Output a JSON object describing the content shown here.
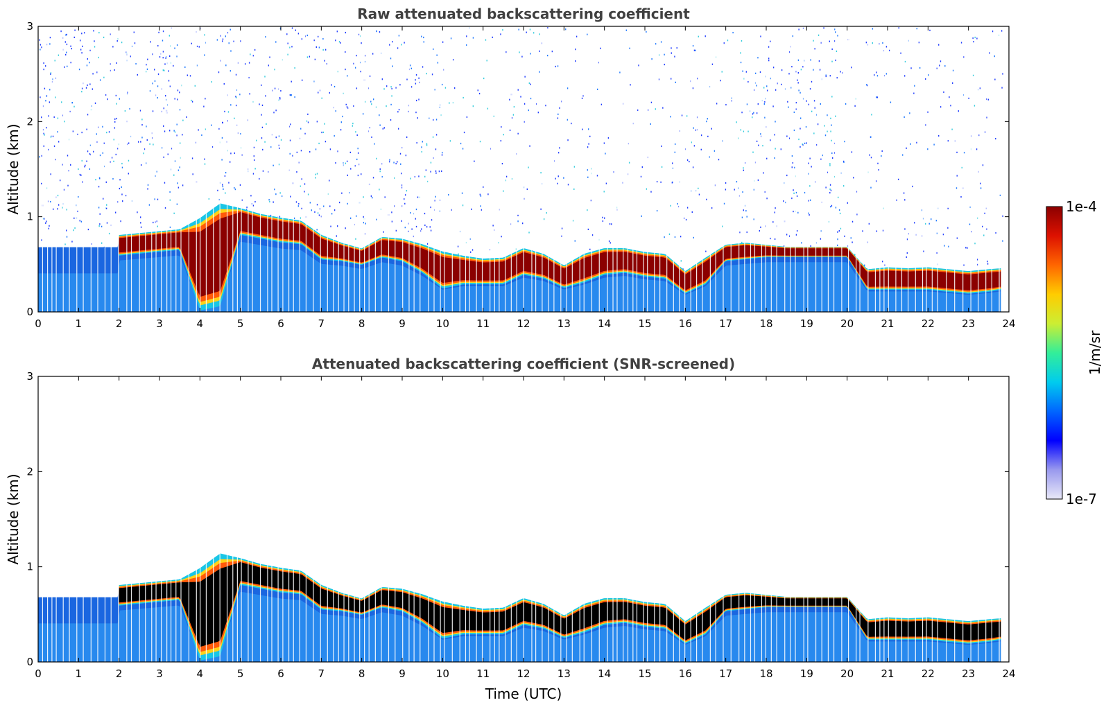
{
  "chart_data": [
    {
      "type": "heatmap",
      "title": "Raw attenuated backscattering coefficient",
      "xlabel": "",
      "ylabel": "Altitude (km)",
      "xlim": [
        0,
        24
      ],
      "ylim": [
        0,
        3
      ],
      "xticks": [
        "0",
        "1",
        "2",
        "3",
        "4",
        "5",
        "6",
        "7",
        "8",
        "9",
        "10",
        "11",
        "12",
        "13",
        "14",
        "15",
        "16",
        "17",
        "18",
        "19",
        "20",
        "21",
        "22",
        "23",
        "24"
      ],
      "yticks": [
        "0",
        "1",
        "2",
        "3"
      ],
      "noise_above_layer": true,
      "layer": {
        "x": [
          2.0,
          2.5,
          3.0,
          3.5,
          4.0,
          4.5,
          5.0,
          5.5,
          6.0,
          6.5,
          7.0,
          7.5,
          8.0,
          8.5,
          9.0,
          9.5,
          10.0,
          10.5,
          11.0,
          11.5,
          12.0,
          12.5,
          13.0,
          13.5,
          14.0,
          14.5,
          15.0,
          15.5,
          16.0,
          16.5,
          17.0,
          17.5,
          18.0,
          18.5,
          19.0,
          19.5,
          20.0,
          20.5,
          21.0,
          21.5,
          22.0,
          22.5,
          23.0,
          23.5,
          23.8
        ],
        "top_km": [
          0.8,
          0.82,
          0.84,
          0.86,
          0.95,
          1.1,
          1.08,
          1.02,
          0.98,
          0.95,
          0.8,
          0.72,
          0.66,
          0.78,
          0.76,
          0.7,
          0.62,
          0.58,
          0.55,
          0.56,
          0.66,
          0.6,
          0.48,
          0.6,
          0.66,
          0.66,
          0.62,
          0.6,
          0.42,
          0.56,
          0.7,
          0.72,
          0.7,
          0.68,
          0.68,
          0.68,
          0.68,
          0.44,
          0.46,
          0.45,
          0.46,
          0.44,
          0.42,
          0.44,
          0.45
        ],
        "bottom_km": [
          0.6,
          0.62,
          0.64,
          0.66,
          0.05,
          0.1,
          0.82,
          0.78,
          0.74,
          0.72,
          0.56,
          0.54,
          0.5,
          0.58,
          0.54,
          0.42,
          0.26,
          0.3,
          0.3,
          0.3,
          0.4,
          0.36,
          0.26,
          0.32,
          0.4,
          0.42,
          0.38,
          0.36,
          0.2,
          0.3,
          0.54,
          0.56,
          0.58,
          0.58,
          0.58,
          0.58,
          0.58,
          0.24,
          0.24,
          0.24,
          0.24,
          0.22,
          0.2,
          0.22,
          0.24
        ]
      }
    },
    {
      "type": "heatmap",
      "title": "Attenuated backscattering coefficient (SNR-screened)",
      "xlabel": "Time (UTC)",
      "ylabel": "Altitude (km)",
      "xlim": [
        0,
        24
      ],
      "ylim": [
        0,
        3
      ],
      "xticks": [
        "0",
        "1",
        "2",
        "3",
        "4",
        "5",
        "6",
        "7",
        "8",
        "9",
        "10",
        "11",
        "12",
        "13",
        "14",
        "15",
        "16",
        "17",
        "18",
        "19",
        "20",
        "21",
        "22",
        "23",
        "24"
      ],
      "yticks": [
        "0",
        "1",
        "2",
        "3"
      ],
      "noise_above_layer": false,
      "layer": {
        "x": [
          2.0,
          2.5,
          3.0,
          3.5,
          4.0,
          4.5,
          5.0,
          5.5,
          6.0,
          6.5,
          7.0,
          7.5,
          8.0,
          8.5,
          9.0,
          9.5,
          10.0,
          10.5,
          11.0,
          11.5,
          12.0,
          12.5,
          13.0,
          13.5,
          14.0,
          14.5,
          15.0,
          15.5,
          16.0,
          16.5,
          17.0,
          17.5,
          18.0,
          18.5,
          19.0,
          19.5,
          20.0,
          20.5,
          21.0,
          21.5,
          22.0,
          22.5,
          23.0,
          23.5,
          23.8
        ],
        "top_km": [
          0.8,
          0.82,
          0.84,
          0.86,
          0.95,
          1.1,
          1.08,
          1.02,
          0.98,
          0.95,
          0.8,
          0.72,
          0.66,
          0.78,
          0.76,
          0.7,
          0.62,
          0.58,
          0.55,
          0.56,
          0.66,
          0.6,
          0.48,
          0.6,
          0.66,
          0.66,
          0.62,
          0.6,
          0.42,
          0.56,
          0.7,
          0.72,
          0.7,
          0.68,
          0.68,
          0.68,
          0.68,
          0.44,
          0.46,
          0.45,
          0.46,
          0.44,
          0.42,
          0.44,
          0.45
        ],
        "bottom_km": [
          0.6,
          0.62,
          0.64,
          0.66,
          0.05,
          0.1,
          0.82,
          0.78,
          0.74,
          0.72,
          0.56,
          0.54,
          0.5,
          0.58,
          0.54,
          0.42,
          0.26,
          0.3,
          0.3,
          0.3,
          0.4,
          0.36,
          0.26,
          0.32,
          0.4,
          0.42,
          0.38,
          0.36,
          0.2,
          0.3,
          0.54,
          0.56,
          0.58,
          0.58,
          0.58,
          0.58,
          0.58,
          0.24,
          0.24,
          0.24,
          0.24,
          0.22,
          0.2,
          0.22,
          0.24
        ]
      }
    }
  ],
  "colorbar": {
    "label": "1/m/sr",
    "max_label": "1e-4",
    "min_label": "1e-7",
    "colors": [
      "#e8e8f8",
      "#9999ee",
      "#0000ff",
      "#0066ff",
      "#00ccee",
      "#33ee99",
      "#ccee33",
      "#ffcc00",
      "#ff6600",
      "#dd1100",
      "#8b0000"
    ]
  },
  "colors": {
    "layer_core_raw": "#8b0000",
    "layer_core_screened": "#000000",
    "background_aerosol": "#1e6fe6",
    "noise": "#1e3cff"
  }
}
